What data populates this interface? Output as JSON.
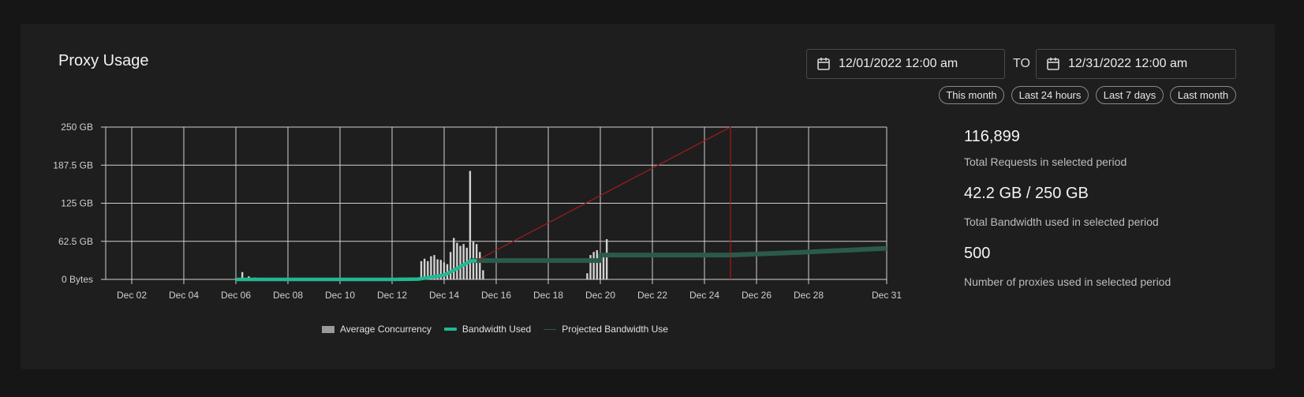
{
  "card": {
    "title": "Proxy Usage",
    "date_from": "12/01/2022 12:00 am",
    "date_to": "12/31/2022 12:00 am",
    "to_label": "TO",
    "presets": [
      "This month",
      "Last 24 hours",
      "Last 7 days",
      "Last month"
    ]
  },
  "stats": [
    {
      "value": "116,899",
      "label": "Total Requests in selected period"
    },
    {
      "value": "42.2 GB / 250 GB",
      "label": "Total Bandwidth used in selected period"
    },
    {
      "value": "500",
      "label": "Number of proxies used in selected period"
    }
  ],
  "colors": {
    "concurrency": "#9a9a9a",
    "bandwidth": "#21b894",
    "projected": "#2b5a4c",
    "limit_line": "#a31c1c",
    "grid": "#d0d0d0"
  },
  "chart_data": {
    "type": "line",
    "x_range": [
      "2022-12-01",
      "2022-12-31"
    ],
    "x_ticks": [
      "Dec 02",
      "Dec 04",
      "Dec 06",
      "Dec 08",
      "Dec 10",
      "Dec 12",
      "Dec 14",
      "Dec 16",
      "Dec 18",
      "Dec 20",
      "Dec 22",
      "Dec 24",
      "Dec 26",
      "Dec 28",
      "Dec 31"
    ],
    "y_ticks": [
      0,
      62.5,
      125,
      187.5,
      250
    ],
    "y_tick_labels": [
      "0 Bytes",
      "62.5 GB",
      "125 GB",
      "187.5 GB",
      "250 GB"
    ],
    "ylim": [
      0,
      250
    ],
    "grid": true,
    "legend": [
      "Average Concurrency",
      "Bandwidth Used",
      "Projected Bandwidth Use"
    ],
    "legend_position": "bottom",
    "series": [
      {
        "name": "Bandwidth Used",
        "type": "line",
        "points": [
          [
            "2022-12-06",
            0
          ],
          [
            "2022-12-08",
            0
          ],
          [
            "2022-12-10",
            0
          ],
          [
            "2022-12-12",
            0
          ],
          [
            "2022-12-13",
            0.5
          ],
          [
            "2022-12-14",
            7
          ],
          [
            "2022-12-14 12:00",
            18
          ],
          [
            "2022-12-15",
            30
          ],
          [
            "2022-12-15 06:00",
            31
          ]
        ]
      },
      {
        "name": "Projected Bandwidth Use",
        "type": "line",
        "points": [
          [
            "2022-12-15",
            31
          ],
          [
            "2022-12-20",
            31
          ],
          [
            "2022-12-20",
            40
          ],
          [
            "2022-12-25",
            40
          ],
          [
            "2022-12-28",
            45
          ],
          [
            "2022-12-31",
            51
          ]
        ]
      },
      {
        "name": "Average Concurrency",
        "type": "bar",
        "points": [
          [
            "2022-12-06 06:00",
            12
          ],
          [
            "2022-12-06 12:00",
            5
          ],
          [
            "2022-12-06 18:00",
            3
          ],
          [
            "2022-12-13 03:00",
            30
          ],
          [
            "2022-12-13 06:00",
            34
          ],
          [
            "2022-12-13 09:00",
            30
          ],
          [
            "2022-12-13 12:00",
            38
          ],
          [
            "2022-12-13 15:00",
            40
          ],
          [
            "2022-12-13 18:00",
            33
          ],
          [
            "2022-12-13 21:00",
            32
          ],
          [
            "2022-12-14 00:00",
            28
          ],
          [
            "2022-12-14 03:00",
            25
          ],
          [
            "2022-12-14 06:00",
            45
          ],
          [
            "2022-12-14 09:00",
            68
          ],
          [
            "2022-12-14 12:00",
            60
          ],
          [
            "2022-12-14 15:00",
            55
          ],
          [
            "2022-12-14 18:00",
            58
          ],
          [
            "2022-12-14 21:00",
            52
          ],
          [
            "2022-12-15 00:00",
            178
          ],
          [
            "2022-12-15 03:00",
            62
          ],
          [
            "2022-12-15 06:00",
            58
          ],
          [
            "2022-12-15 09:00",
            45
          ],
          [
            "2022-12-15 12:00",
            15
          ],
          [
            "2022-12-19 12:00",
            10
          ],
          [
            "2022-12-19 15:00",
            40
          ],
          [
            "2022-12-19 18:00",
            45
          ],
          [
            "2022-12-19 21:00",
            48
          ],
          [
            "2022-12-20 00:00",
            42
          ],
          [
            "2022-12-20 03:00",
            40
          ],
          [
            "2022-12-20 06:00",
            66
          ]
        ]
      },
      {
        "name": "Bandwidth Limit",
        "type": "line",
        "points": [
          [
            "2022-12-15 06:00",
            31
          ],
          [
            "2022-12-25",
            250
          ],
          [
            "2022-12-25",
            0
          ]
        ]
      }
    ]
  }
}
